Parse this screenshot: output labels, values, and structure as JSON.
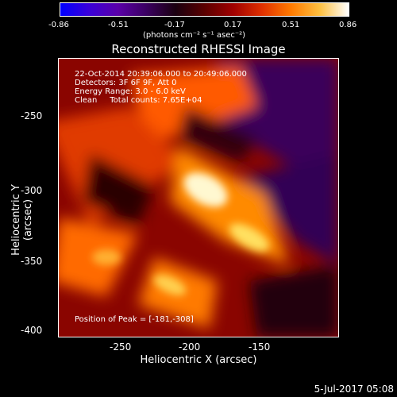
{
  "colorbar": {
    "ticks": [
      "-0.86",
      "-0.51",
      "-0.17",
      "0.17",
      "0.51",
      "0.86"
    ],
    "unit": "(photons cm⁻² s⁻¹ asec⁻²)"
  },
  "title": "Reconstructed RHESSI Image",
  "info": {
    "line1": "22-Oct-2014 20:39:06.000 to 20:49:06.000",
    "line2": "Detectors: 3F 6F 9F, Att 0",
    "line3": "Energy Range: 3.0 - 6.0 keV",
    "line4": "Clean     Total counts: 7.65E+04"
  },
  "peak": "Position of Peak = [-181,-308]",
  "axes": {
    "xlabel": "Heliocentric X (arcsec)",
    "ylabel": "Heliocentric Y (arcsec)",
    "xticks": [
      "-250",
      "-200",
      "-150"
    ],
    "yticks": [
      "-250",
      "-300",
      "-350",
      "-400"
    ]
  },
  "datestamp": "5-Jul-2017 05:08"
}
